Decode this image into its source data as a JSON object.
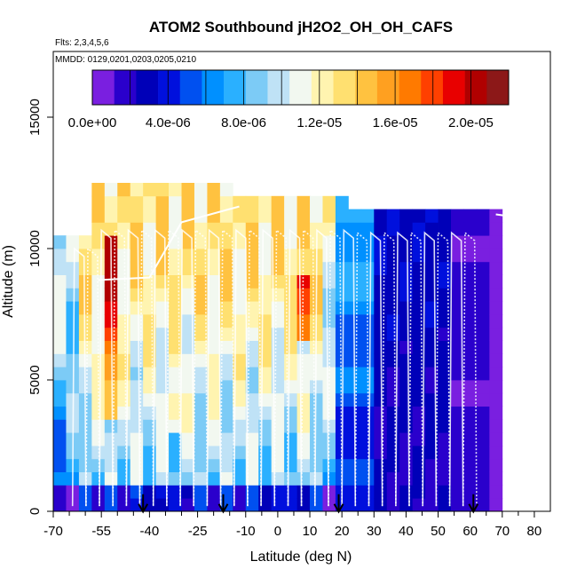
{
  "chart_data": {
    "type": "heatmap",
    "title": "ATOM2 Southbound jH2O2_OH_OH_CAFS",
    "flights_note": "Flts: 2,3,4,5,6",
    "dates_note": "MMDD: 0129,0201,0203,0205,0210",
    "xlabel": "Latitude (deg N)",
    "ylabel": "Altitude (m)",
    "xlim": [
      -70,
      85
    ],
    "ylim": [
      0,
      17500
    ],
    "x_ticks": [
      -70,
      -55,
      -40,
      -25,
      -10,
      0,
      10,
      20,
      30,
      40,
      50,
      60,
      70,
      80
    ],
    "x_minor_ticks": [
      -65,
      -60,
      -50,
      -45,
      -35,
      -30,
      -20,
      -15,
      -5,
      5,
      15,
      25,
      35,
      45,
      55,
      65,
      75
    ],
    "y_ticks": [
      0,
      5000,
      10000,
      15000
    ],
    "colorbar": {
      "min": 0,
      "max": 2.2e-05,
      "tick_values": [
        0,
        4e-06,
        8e-06,
        1.2e-05,
        1.6e-05,
        2e-05
      ],
      "tick_labels": [
        "0.0e+00",
        "4.0e-06",
        "8.0e-06",
        "1.2e-05",
        "1.6e-05",
        "2.0e-05"
      ],
      "colors": [
        "#7a1fe0",
        "#2a00cc",
        "#0000b8",
        "#0010dd",
        "#0050f0",
        "#0090ff",
        "#2ab0ff",
        "#7ccbf6",
        "#bfe2f6",
        "#f2f8f0",
        "#fff4b0",
        "#ffe070",
        "#ffc240",
        "#ffa020",
        "#ff7a00",
        "#ff4000",
        "#e80000",
        "#b00000",
        "#8c1818"
      ]
    },
    "lat_bins": [
      -68,
      -64,
      -60,
      -56,
      -52,
      -48,
      -44,
      -40,
      -36,
      -32,
      -28,
      -24,
      -20,
      -16,
      -12,
      -8,
      -4,
      0,
      4,
      8,
      12,
      16,
      20,
      24,
      28,
      32,
      36,
      40,
      44,
      48,
      52,
      56,
      60,
      64,
      68
    ],
    "alt_bins_m": [
      0,
      500,
      1000,
      1500,
      2000,
      2500,
      3000,
      3500,
      4000,
      4500,
      5000,
      5500,
      6000,
      6500,
      7000,
      7500,
      8000,
      8500,
      9000,
      9500,
      10000,
      10500,
      11000,
      11500,
      12000
    ],
    "series_note": "Curtain of jH2O2 values (s^-1); rows = altitude levels, columns = latitude bins; null = no data",
    "profile_traces": "white dotted/solid flight-track profiles overlaid",
    "event_markers_lat": [
      -42,
      -17,
      19,
      61
    ]
  }
}
